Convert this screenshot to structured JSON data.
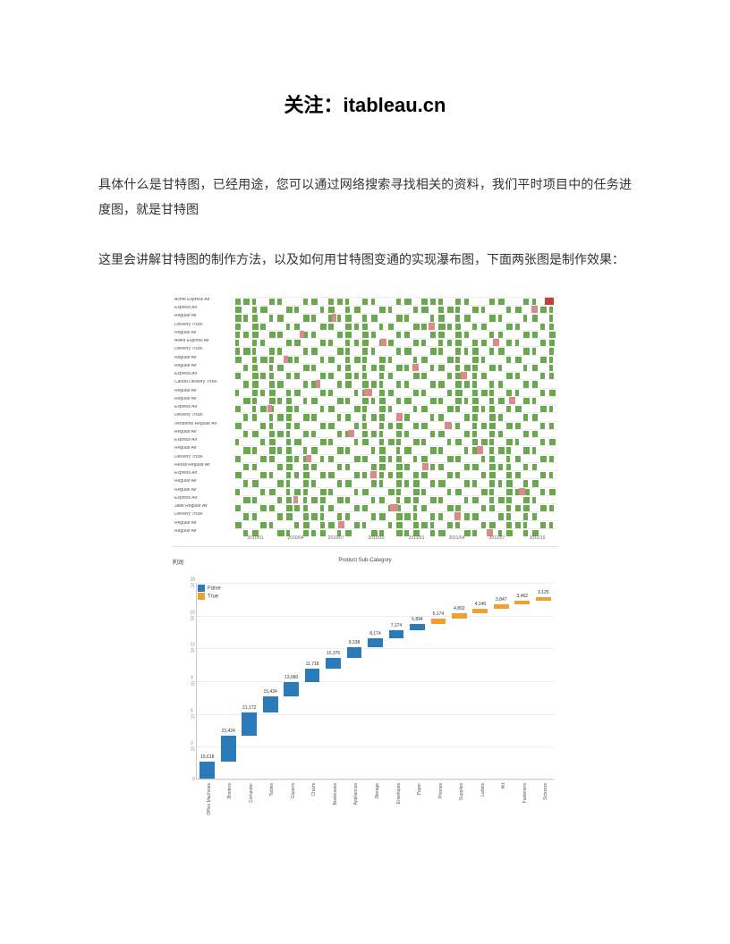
{
  "title_prefix": "关注：",
  "title_brand": "itableau.cn",
  "paragraphs": [
    "具体什么是甘特图，已经用途，您可以通过网络搜索寻找相关的资料，我们平时项目中的任务进度图，就是甘特图",
    "这里会讲解甘特图的制作方法，以及如何用甘特图变通的实现瀑布图，下面两张图是制作效果："
  ],
  "gantt": {
    "colors": {
      "green": "#6aa84f",
      "red": "#d98b8b",
      "darkred": "#c04040",
      "border": "#eeeeee"
    },
    "row_labels": [
      "Acme",
      "",
      "",
      "",
      "",
      "Allied",
      "",
      "",
      "",
      "",
      "Canda",
      "",
      "",
      "",
      "",
      "Vendome",
      "",
      "",
      "",
      "",
      "Rexall",
      "",
      "",
      "",
      "",
      "Jade",
      "",
      "",
      ""
    ],
    "sub_labels": [
      "Express Air",
      "Express Air",
      "Regular Air",
      "Delivery Truck",
      "Regular Air",
      "Express Air",
      "Delivery Truck",
      "Regular Air",
      "Regular Air",
      "Express Air",
      "Delivery Truck",
      "Regular Air",
      "Regular Air",
      "Express Air",
      "Delivery Truck",
      "Regular Air",
      "Regular Air",
      "Express Air",
      "Regular Air",
      "Delivery Truck",
      "Regular Air",
      "Express Air",
      "Regular Air",
      "Regular Air",
      "Express Air",
      "Regular Air",
      "Delivery Truck",
      "Regular Air",
      "Regular Air"
    ],
    "x_ticks": [
      "2010/01",
      "2010/04",
      "2010/07",
      "2010/10",
      "2011/01",
      "2011/04",
      "2011/07",
      "2011/10"
    ],
    "rows": 29,
    "bg_bars_per_row": 38,
    "red_overlays": [
      {
        "row": 1,
        "x": 92,
        "w": 2
      },
      {
        "row": 2,
        "x": 30,
        "w": 1.5
      },
      {
        "row": 3,
        "x": 60,
        "w": 2
      },
      {
        "row": 4,
        "x": 20,
        "w": 1.5
      },
      {
        "row": 5,
        "x": 45,
        "w": 2
      },
      {
        "row": 5,
        "x": 80,
        "w": 2
      },
      {
        "row": 7,
        "x": 15,
        "w": 1.5
      },
      {
        "row": 8,
        "x": 55,
        "w": 2
      },
      {
        "row": 9,
        "x": 70,
        "w": 2
      },
      {
        "row": 10,
        "x": 25,
        "w": 1.5
      },
      {
        "row": 11,
        "x": 40,
        "w": 2.5
      },
      {
        "row": 12,
        "x": 85,
        "w": 2
      },
      {
        "row": 13,
        "x": 10,
        "w": 1.5
      },
      {
        "row": 14,
        "x": 50,
        "w": 2
      },
      {
        "row": 15,
        "x": 65,
        "w": 2
      },
      {
        "row": 16,
        "x": 35,
        "w": 2
      },
      {
        "row": 18,
        "x": 75,
        "w": 2
      },
      {
        "row": 19,
        "x": 22,
        "w": 1.5
      },
      {
        "row": 20,
        "x": 58,
        "w": 2
      },
      {
        "row": 21,
        "x": 42,
        "w": 2
      },
      {
        "row": 23,
        "x": 88,
        "w": 2
      },
      {
        "row": 24,
        "x": 18,
        "w": 1.5
      },
      {
        "row": 25,
        "x": 48,
        "w": 2.5
      },
      {
        "row": 26,
        "x": 68,
        "w": 2
      },
      {
        "row": 27,
        "x": 32,
        "w": 2
      },
      {
        "row": 28,
        "x": 78,
        "w": 2
      },
      {
        "row": 0,
        "x": 96,
        "w": 3,
        "c": "#c04040"
      }
    ]
  },
  "waterfall": {
    "title": "Product Sub-Category",
    "sidelabel": "利润",
    "legend": [
      {
        "label": "False",
        "color": "#2b7bba"
      },
      {
        "label": "True",
        "color": "#f0a030"
      }
    ],
    "y_max": 180000,
    "y_ticks": [
      0,
      30000,
      60000,
      90000,
      120000,
      150000,
      180000
    ],
    "y_tick_labels": [
      "0",
      "3万",
      "6万",
      "9万",
      "12万",
      "15万",
      "18万"
    ],
    "bar_width_pct": 4.2,
    "bars": [
      {
        "cat": "Office Machines",
        "start": 0,
        "end": 15618,
        "label": "15,618",
        "color": "#2b7bba"
      },
      {
        "cat": "Binders",
        "start": 15618,
        "end": 39042,
        "label": "23,424",
        "color": "#2b7bba"
      },
      {
        "cat": "Computer",
        "start": 39042,
        "end": 60214,
        "label": "21,172",
        "color": "#2b7bba"
      },
      {
        "cat": "Tables",
        "start": 60214,
        "end": 75648,
        "label": "15,434",
        "color": "#2b7bba"
      },
      {
        "cat": "Copiers",
        "start": 75648,
        "end": 88728,
        "label": "13,080",
        "color": "#2b7bba"
      },
      {
        "cat": "Chairs",
        "start": 88728,
        "end": 100446,
        "label": "11,718",
        "color": "#2b7bba"
      },
      {
        "cat": "Bookcases",
        "start": 100446,
        "end": 110822,
        "label": "10,376",
        "color": "#2b7bba"
      },
      {
        "cat": "Appliances",
        "start": 110822,
        "end": 120160,
        "label": "9,338",
        "color": "#2b7bba"
      },
      {
        "cat": "Storage",
        "start": 120160,
        "end": 128334,
        "label": "8,174",
        "color": "#2b7bba"
      },
      {
        "cat": "Envelopes",
        "start": 128334,
        "end": 135508,
        "label": "7,174",
        "color": "#2b7bba"
      },
      {
        "cat": "Paper",
        "start": 135508,
        "end": 141402,
        "label": "5,894",
        "color": "#2b7bba"
      },
      {
        "cat": "Phones",
        "start": 141402,
        "end": 146576,
        "label": "5,174",
        "color": "#f0a030"
      },
      {
        "cat": "Supplies",
        "start": 146576,
        "end": 151378,
        "label": "4,802",
        "color": "#f0a030"
      },
      {
        "cat": "Labels",
        "start": 151378,
        "end": 155524,
        "label": "4,146",
        "color": "#f0a030"
      },
      {
        "cat": "Art",
        "start": 155524,
        "end": 159371,
        "label": "3,847",
        "color": "#f0a030"
      },
      {
        "cat": "Fasteners",
        "start": 159371,
        "end": 162833,
        "label": "3,462",
        "color": "#f0a030"
      },
      {
        "cat": "Scissors",
        "start": 162833,
        "end": 165958,
        "label": "3,125",
        "color": "#f0a030"
      }
    ]
  }
}
